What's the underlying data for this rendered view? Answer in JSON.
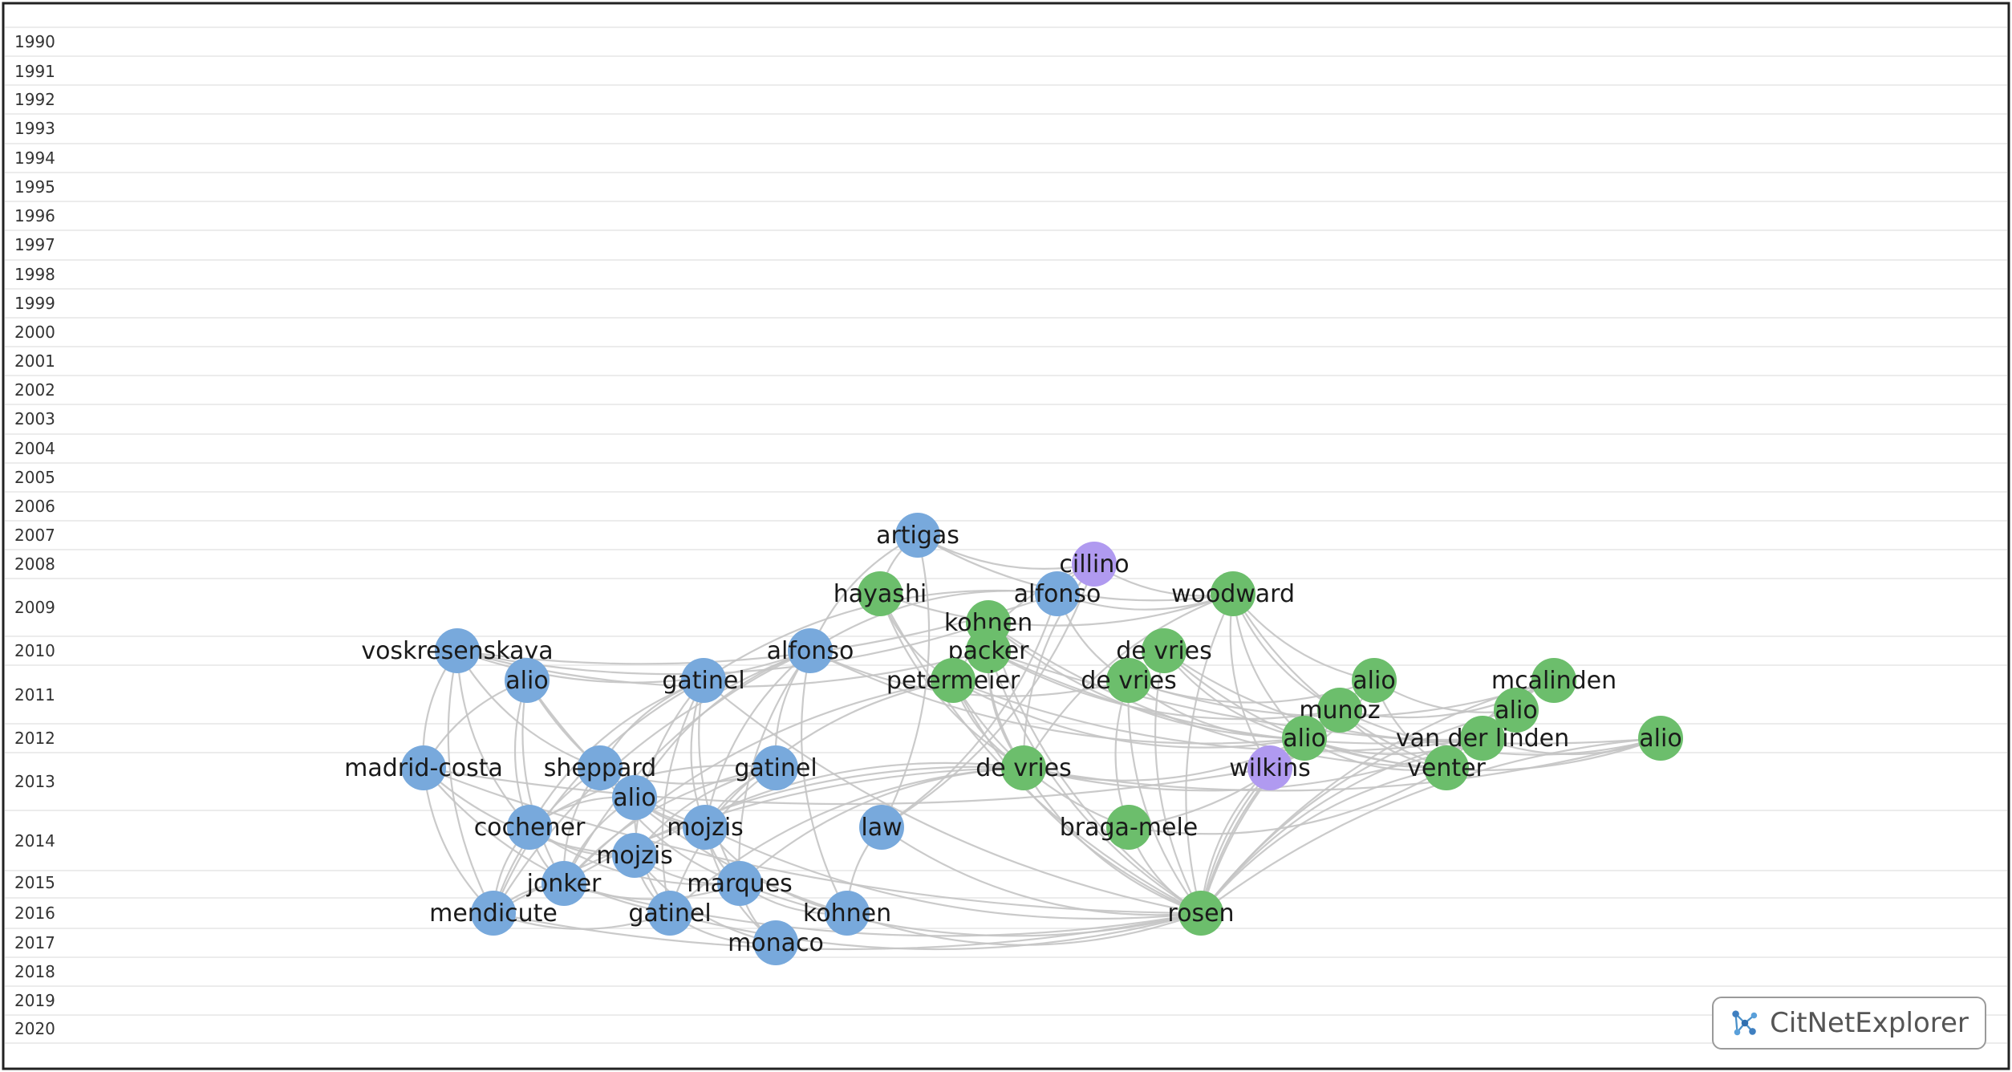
{
  "colors": {
    "cluster_blue": "#78a9dc",
    "cluster_green": "#6cbe6c",
    "cluster_purple": "#b09af0",
    "edge": "#c4c4c4",
    "grid": "#e6e6e6",
    "frame": "#222222"
  },
  "years": [
    "1990",
    "1991",
    "1992",
    "1993",
    "1994",
    "1995",
    "1996",
    "1997",
    "1998",
    "1999",
    "2000",
    "2001",
    "2002",
    "2003",
    "2004",
    "2005",
    "2006",
    "2007",
    "2008",
    "2009",
    "2010",
    "2011",
    "2012",
    "2013",
    "2014",
    "2015",
    "2016",
    "2017",
    "2018",
    "2019",
    "2020"
  ],
  "nodes": [
    {
      "id": "artigas",
      "label": "artigas",
      "year": 2007,
      "cluster": "blue"
    },
    {
      "id": "cillino",
      "label": "cillino",
      "year": 2008,
      "cluster": "purple"
    },
    {
      "id": "hayashi",
      "label": "hayashi",
      "year": 2009,
      "cluster": "green"
    },
    {
      "id": "alfonso09",
      "label": "alfonso",
      "year": 2009,
      "cluster": "blue"
    },
    {
      "id": "woodward",
      "label": "woodward",
      "year": 2009,
      "cluster": "green"
    },
    {
      "id": "kohnen10",
      "label": "kohnen",
      "year": 2010,
      "cluster": "green"
    },
    {
      "id": "voskresenskaya",
      "label": "voskresenskaya",
      "year": 2010,
      "cluster": "blue"
    },
    {
      "id": "alfonso10",
      "label": "alfonso",
      "year": 2010,
      "cluster": "blue"
    },
    {
      "id": "packer",
      "label": "packer",
      "year": 2010,
      "cluster": "green"
    },
    {
      "id": "devries10",
      "label": "de vries",
      "year": 2010,
      "cluster": "green"
    },
    {
      "id": "alio11a",
      "label": "alio",
      "year": 2011,
      "cluster": "blue"
    },
    {
      "id": "gatinel11",
      "label": "gatinel",
      "year": 2011,
      "cluster": "blue"
    },
    {
      "id": "petermeier",
      "label": "petermeier",
      "year": 2011,
      "cluster": "green"
    },
    {
      "id": "devries11",
      "label": "de vries",
      "year": 2011,
      "cluster": "green"
    },
    {
      "id": "alio11b",
      "label": "alio",
      "year": 2011,
      "cluster": "green"
    },
    {
      "id": "mcalinden",
      "label": "mcalinden",
      "year": 2011,
      "cluster": "green"
    },
    {
      "id": "munoz",
      "label": "munoz",
      "year": 2012,
      "cluster": "green"
    },
    {
      "id": "alio12a",
      "label": "alio",
      "year": 2012,
      "cluster": "green"
    },
    {
      "id": "alio12b",
      "label": "alio",
      "year": 2012,
      "cluster": "green"
    },
    {
      "id": "vanderlinden",
      "label": "van der linden",
      "year": 2012,
      "cluster": "green"
    },
    {
      "id": "alio12c",
      "label": "alio",
      "year": 2012,
      "cluster": "green"
    },
    {
      "id": "madridcosta",
      "label": "madrid-costa",
      "year": 2013,
      "cluster": "blue"
    },
    {
      "id": "sheppard",
      "label": "sheppard",
      "year": 2013,
      "cluster": "blue"
    },
    {
      "id": "gatinel13",
      "label": "gatinel",
      "year": 2013,
      "cluster": "blue"
    },
    {
      "id": "devries13",
      "label": "de vries",
      "year": 2013,
      "cluster": "green"
    },
    {
      "id": "wilkins",
      "label": "wilkins",
      "year": 2013,
      "cluster": "purple"
    },
    {
      "id": "venter",
      "label": "venter",
      "year": 2013,
      "cluster": "green"
    },
    {
      "id": "alio13",
      "label": "alio",
      "year": 2013,
      "cluster": "blue"
    },
    {
      "id": "cochener",
      "label": "cochener",
      "year": 2014,
      "cluster": "blue"
    },
    {
      "id": "mojzis14",
      "label": "mojzis",
      "year": 2014,
      "cluster": "blue"
    },
    {
      "id": "law",
      "label": "law",
      "year": 2014,
      "cluster": "blue"
    },
    {
      "id": "bragamele",
      "label": "braga-mele",
      "year": 2014,
      "cluster": "green"
    },
    {
      "id": "mojzis15",
      "label": "mojzis",
      "year": 2015,
      "cluster": "blue"
    },
    {
      "id": "jonker",
      "label": "jonker",
      "year": 2015,
      "cluster": "blue"
    },
    {
      "id": "marques",
      "label": "marques",
      "year": 2015,
      "cluster": "blue"
    },
    {
      "id": "mendicute",
      "label": "mendicute",
      "year": 2016,
      "cluster": "blue"
    },
    {
      "id": "gatinel16",
      "label": "gatinel",
      "year": 2016,
      "cluster": "blue"
    },
    {
      "id": "kohnen16",
      "label": "kohnen",
      "year": 2016,
      "cluster": "blue"
    },
    {
      "id": "rosen",
      "label": "rosen",
      "year": 2016,
      "cluster": "green"
    },
    {
      "id": "monaco",
      "label": "monaco",
      "year": 2017,
      "cluster": "blue"
    }
  ],
  "edges": [
    [
      "voskresenskaya",
      "alfonso10"
    ],
    [
      "voskresenskaya",
      "kohnen10"
    ],
    [
      "voskresenskaya",
      "packer"
    ],
    [
      "voskresenskaya",
      "alfonso09"
    ],
    [
      "artigas",
      "woodward"
    ],
    [
      "artigas",
      "cillino"
    ],
    [
      "artigas",
      "alfonso10"
    ],
    [
      "artigas",
      "hayashi"
    ],
    [
      "cillino",
      "woodward"
    ],
    [
      "cillino",
      "alfonso09"
    ],
    [
      "cillino",
      "devries13"
    ],
    [
      "cillino",
      "petermeier"
    ],
    [
      "alfonso09",
      "woodward"
    ],
    [
      "alfonso09",
      "gatinel11"
    ],
    [
      "alfonso09",
      "devries11"
    ],
    [
      "alfonso09",
      "alfonso10"
    ],
    [
      "hayashi",
      "woodward"
    ],
    [
      "hayashi",
      "rosen"
    ],
    [
      "hayashi",
      "petermeier"
    ],
    [
      "hayashi",
      "devries13"
    ],
    [
      "woodward",
      "rosen"
    ],
    [
      "woodward",
      "wilkins"
    ],
    [
      "woodward",
      "alio12b"
    ],
    [
      "woodward",
      "munoz"
    ],
    [
      "woodward",
      "venter"
    ],
    [
      "woodward",
      "devries13"
    ],
    [
      "woodward",
      "alio11b"
    ],
    [
      "kohnen10",
      "rosen"
    ],
    [
      "kohnen10",
      "devries13"
    ],
    [
      "kohnen10",
      "alio12b"
    ],
    [
      "kohnen10",
      "venter"
    ],
    [
      "packer",
      "rosen"
    ],
    [
      "packer",
      "vanderlinden"
    ],
    [
      "packer",
      "munoz"
    ],
    [
      "packer",
      "alio12c"
    ],
    [
      "packer",
      "devries13"
    ],
    [
      "devries10",
      "rosen"
    ],
    [
      "devries10",
      "alio12b"
    ],
    [
      "devries10",
      "vanderlinden"
    ],
    [
      "devries10",
      "venter"
    ],
    [
      "devries11",
      "rosen"
    ],
    [
      "devries11",
      "alio12b"
    ],
    [
      "devries11",
      "mcalinden"
    ],
    [
      "devries11",
      "bragamele"
    ],
    [
      "devries11",
      "alio11b"
    ],
    [
      "petermeier",
      "rosen"
    ],
    [
      "petermeier",
      "devries13"
    ],
    [
      "petermeier",
      "alio12b"
    ],
    [
      "petermeier",
      "vanderlinden"
    ],
    [
      "petermeier",
      "bragamele"
    ],
    [
      "petermeier",
      "mojzis14"
    ],
    [
      "petermeier",
      "jonker"
    ],
    [
      "alfonso10",
      "devries11"
    ],
    [
      "alfonso10",
      "alio12b"
    ],
    [
      "alfonso10",
      "marques"
    ],
    [
      "alfonso10",
      "mojzis14"
    ],
    [
      "alfonso10",
      "kohnen16"
    ],
    [
      "alfonso10",
      "gatinel13"
    ],
    [
      "alfonso10",
      "jonker"
    ],
    [
      "alfonso10",
      "alio13"
    ],
    [
      "alfonso10",
      "mendicute"
    ],
    [
      "gatinel11",
      "cochener"
    ],
    [
      "gatinel11",
      "mojzis14"
    ],
    [
      "gatinel11",
      "mojzis15"
    ],
    [
      "gatinel11",
      "mendicute"
    ],
    [
      "gatinel11",
      "marques"
    ],
    [
      "gatinel11",
      "sheppard"
    ],
    [
      "gatinel11",
      "gatinel16"
    ],
    [
      "gatinel11",
      "rosen"
    ],
    [
      "alio11a",
      "madridcosta"
    ],
    [
      "alio11a",
      "jonker"
    ],
    [
      "alio11a",
      "mojzis14"
    ],
    [
      "alio11a",
      "kohnen16"
    ],
    [
      "alio11a",
      "cochener"
    ],
    [
      "voskresenskaya",
      "madridcosta"
    ],
    [
      "voskresenskaya",
      "mendicute"
    ],
    [
      "voskresenskaya",
      "cochener"
    ],
    [
      "voskresenskaya",
      "sheppard"
    ],
    [
      "madridcosta",
      "mendicute"
    ],
    [
      "madridcosta",
      "mojzis15"
    ],
    [
      "madridcosta",
      "rosen"
    ],
    [
      "madridcosta",
      "wilkins"
    ],
    [
      "madridcosta",
      "gatinel16"
    ],
    [
      "sheppard",
      "jonker"
    ],
    [
      "sheppard",
      "mojzis14"
    ],
    [
      "sheppard",
      "mendicute"
    ],
    [
      "sheppard",
      "marques"
    ],
    [
      "sheppard",
      "gatinel13"
    ],
    [
      "gatinel13",
      "mojzis15"
    ],
    [
      "gatinel13",
      "gatinel16"
    ],
    [
      "gatinel13",
      "cochener"
    ],
    [
      "gatinel13",
      "jonker"
    ],
    [
      "gatinel13",
      "mojzis14"
    ],
    [
      "alio13",
      "cochener"
    ],
    [
      "alio13",
      "jonker"
    ],
    [
      "alio13",
      "mojzis14"
    ],
    [
      "alio13",
      "gatinel16"
    ],
    [
      "cochener",
      "mojzis15"
    ],
    [
      "cochener",
      "mendicute"
    ],
    [
      "cochener",
      "jonker"
    ],
    [
      "cochener",
      "marques"
    ],
    [
      "mojzis14",
      "marques"
    ],
    [
      "mojzis14",
      "monaco"
    ],
    [
      "mojzis14",
      "kohnen16"
    ],
    [
      "mojzis14",
      "rosen"
    ],
    [
      "mojzis15",
      "marques"
    ],
    [
      "mojzis15",
      "monaco"
    ],
    [
      "mojzis15",
      "gatinel16"
    ],
    [
      "jonker",
      "mendicute"
    ],
    [
      "jonker",
      "rosen"
    ],
    [
      "jonker",
      "marques"
    ],
    [
      "marques",
      "monaco"
    ],
    [
      "marques",
      "kohnen16"
    ],
    [
      "marques",
      "rosen"
    ],
    [
      "mendicute",
      "rosen"
    ],
    [
      "mendicute",
      "gatinel16"
    ],
    [
      "gatinel16",
      "monaco"
    ],
    [
      "gatinel16",
      "rosen"
    ],
    [
      "kohnen16",
      "rosen"
    ],
    [
      "law",
      "artigas"
    ],
    [
      "law",
      "kohnen16"
    ],
    [
      "law",
      "rosen"
    ],
    [
      "law",
      "alfonso09"
    ],
    [
      "law",
      "cillino"
    ],
    [
      "devries13",
      "rosen"
    ],
    [
      "devries13",
      "mendicute"
    ],
    [
      "devries13",
      "jonker"
    ],
    [
      "devries13",
      "marques"
    ],
    [
      "devries13",
      "mojzis15"
    ],
    [
      "devries13",
      "gatinel16"
    ],
    [
      "devries13",
      "alio12c"
    ],
    [
      "devries13",
      "vanderlinden"
    ],
    [
      "devries13",
      "alio12b"
    ],
    [
      "bragamele",
      "rosen"
    ],
    [
      "bragamele",
      "venter"
    ],
    [
      "bragamele",
      "munoz"
    ],
    [
      "wilkins",
      "rosen"
    ],
    [
      "wilkins",
      "alio12b"
    ],
    [
      "wilkins",
      "munoz"
    ],
    [
      "wilkins",
      "alio11b"
    ],
    [
      "munoz",
      "rosen"
    ],
    [
      "munoz",
      "venter"
    ],
    [
      "munoz",
      "alio12c"
    ],
    [
      "munoz",
      "mcalinden"
    ],
    [
      "alio12b",
      "rosen"
    ],
    [
      "alio12b",
      "vanderlinden"
    ],
    [
      "alio12b",
      "venter"
    ],
    [
      "alio12b",
      "alio12c"
    ],
    [
      "alio11b",
      "rosen"
    ],
    [
      "alio11b",
      "venter"
    ],
    [
      "alio11b",
      "alio12a"
    ],
    [
      "mcalinden",
      "rosen"
    ],
    [
      "mcalinden",
      "venter"
    ],
    [
      "mcalinden",
      "vanderlinden"
    ],
    [
      "mcalinden",
      "alio12a"
    ],
    [
      "vanderlinden",
      "rosen"
    ],
    [
      "vanderlinden",
      "alio12c"
    ],
    [
      "vanderlinden",
      "venter"
    ],
    [
      "alio12a",
      "rosen"
    ],
    [
      "alio12c",
      "rosen"
    ],
    [
      "venter",
      "rosen"
    ]
  ],
  "brand": {
    "label": "CitNetExplorer",
    "icon": "citnetexplorer-logo-icon"
  }
}
